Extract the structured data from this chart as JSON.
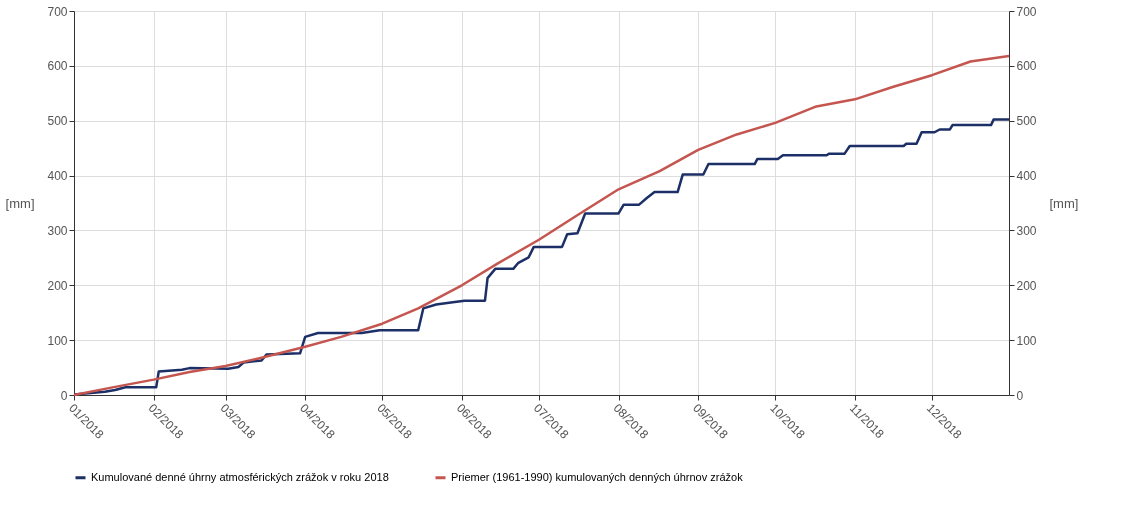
{
  "chart_data": {
    "type": "line",
    "ylabel": "[mm]",
    "y2label": "[mm]",
    "xlim": [
      "2018-01-01",
      "2018-12-31"
    ],
    "xticks": [
      {
        "value": "2018-01-01",
        "label": "01/2018"
      },
      {
        "value": "2018-02-01",
        "label": "02/2018"
      },
      {
        "value": "2018-03-01",
        "label": "03/2018"
      },
      {
        "value": "2018-04-01",
        "label": "04/2018"
      },
      {
        "value": "2018-05-01",
        "label": "05/2018"
      },
      {
        "value": "2018-06-01",
        "label": "06/2018"
      },
      {
        "value": "2018-07-01",
        "label": "07/2018"
      },
      {
        "value": "2018-08-01",
        "label": "08/2018"
      },
      {
        "value": "2018-09-01",
        "label": "09/2018"
      },
      {
        "value": "2018-10-01",
        "label": "10/2018"
      },
      {
        "value": "2018-11-01",
        "label": "11/2018"
      },
      {
        "value": "2018-12-01",
        "label": "12/2018"
      }
    ],
    "ylim": [
      0,
      700
    ],
    "yticks": [
      0,
      100,
      200,
      300,
      400,
      500,
      600,
      700
    ],
    "y2lim": [
      0,
      700
    ],
    "y2ticks": [
      0,
      100,
      200,
      300,
      400,
      500,
      600,
      700
    ],
    "grid": true,
    "legend": "bottom",
    "line_style": "solid",
    "marker": "none",
    "series": [
      {
        "name": "Kumulované denné úhrny atmosférických zrážok v roku 2018",
        "color": "#1c2f66",
        "x": [
          "2018-01-01",
          "2018-01-13",
          "2018-01-17",
          "2018-01-21",
          "2018-02-02",
          "2018-02-03",
          "2018-02-12",
          "2018-02-15",
          "2018-03-02",
          "2018-03-06",
          "2018-03-08",
          "2018-03-15",
          "2018-03-17",
          "2018-03-30",
          "2018-04-01",
          "2018-04-06",
          "2018-04-23",
          "2018-04-30",
          "2018-05-15",
          "2018-05-17",
          "2018-05-22",
          "2018-05-27",
          "2018-06-02",
          "2018-06-10",
          "2018-06-11",
          "2018-06-14",
          "2018-06-21",
          "2018-06-23",
          "2018-06-27",
          "2018-06-29",
          "2018-07-10",
          "2018-07-12",
          "2018-07-16",
          "2018-07-19",
          "2018-08-01",
          "2018-08-03",
          "2018-08-09",
          "2018-08-12",
          "2018-08-15",
          "2018-08-24",
          "2018-08-26",
          "2018-09-03",
          "2018-09-05",
          "2018-09-23",
          "2018-09-24",
          "2018-10-02",
          "2018-10-04",
          "2018-10-21",
          "2018-10-22",
          "2018-10-28",
          "2018-10-30",
          "2018-11-20",
          "2018-11-21",
          "2018-11-25",
          "2018-11-27",
          "2018-12-02",
          "2018-12-04",
          "2018-12-08",
          "2018-12-09",
          "2018-12-24",
          "2018-12-25",
          "2018-12-31"
        ],
        "values": [
          1,
          6,
          9,
          14,
          14,
          43,
          46,
          49,
          48,
          51,
          59,
          63,
          74,
          76,
          106,
          113,
          113,
          118,
          118,
          158,
          165,
          168,
          172,
          172,
          213,
          230,
          230,
          241,
          251,
          270,
          270,
          293,
          295,
          331,
          331,
          347,
          347,
          359,
          370,
          370,
          402,
          402,
          421,
          421,
          430,
          430,
          437,
          437,
          440,
          440,
          454,
          454,
          458,
          458,
          479,
          479,
          484,
          484,
          492,
          492,
          502,
          502
        ]
      },
      {
        "name": "Priemer (1961-1990) kumulovaných denných úhrnov zrážok",
        "color": "#c4554f",
        "x": [
          "2018-01-01",
          "2018-01-15",
          "2018-02-01",
          "2018-02-15",
          "2018-03-01",
          "2018-03-15",
          "2018-04-01",
          "2018-04-15",
          "2018-05-01",
          "2018-05-15",
          "2018-06-01",
          "2018-06-15",
          "2018-07-01",
          "2018-07-15",
          "2018-08-01",
          "2018-08-17",
          "2018-09-01",
          "2018-09-16",
          "2018-10-01",
          "2018-10-17",
          "2018-11-01",
          "2018-11-16",
          "2018-12-01",
          "2018-12-16",
          "2018-12-31"
        ],
        "values": [
          0,
          13,
          28,
          42,
          53,
          68,
          88,
          106,
          130,
          158,
          200,
          240,
          283,
          325,
          375,
          408,
          447,
          475,
          496,
          526,
          539,
          562,
          583,
          608,
          618
        ]
      }
    ]
  }
}
